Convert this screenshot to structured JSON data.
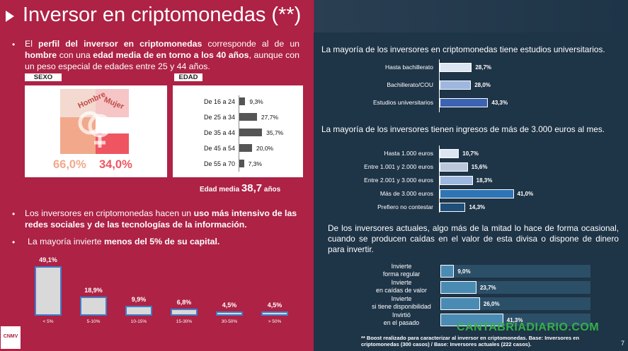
{
  "header": {
    "title": "Inversor en criptomonedas (**)"
  },
  "intro": {
    "t1": "El ",
    "b1": "perfil del inversor en criptomonedas",
    "t2": " corresponde al de un ",
    "b2": "hombre",
    "t3": " con una ",
    "b3": "edad media de en torno a los 40 años",
    "t4": ", aunque con un peso especial de edades entre 25 y 44 años."
  },
  "sexo": {
    "label": "SEXO",
    "hombre_label": "Hombre",
    "mujer_label": "Mujer",
    "hombre_pct": "66,0%",
    "mujer_pct": "34,0%",
    "hombre_value": 66.0,
    "mujer_value": 34.0,
    "hombre_color": "#f2a98b",
    "mujer_color": "#ee5560"
  },
  "edad": {
    "label": "EDAD",
    "rows": [
      {
        "label": "De 16 a 24",
        "value": 9.3,
        "text": "9,3%"
      },
      {
        "label": "De 25 a 34",
        "value": 27.7,
        "text": "27,7%"
      },
      {
        "label": "De 35 a 44",
        "value": 35.7,
        "text": "35,7%"
      },
      {
        "label": "De 45 a 54",
        "value": 20.0,
        "text": "20,0%"
      },
      {
        "label": "De 55 a 70",
        "value": 7.3,
        "text": "7,3%"
      }
    ],
    "media_label": "Edad media ",
    "media_value": "38,7",
    "media_unit": " años"
  },
  "bullets": {
    "b2_t1": "Los inversores en criptomonedas hacen un ",
    "b2_b1": "uso más intensivo de las redes sociales y de las tecnologías de la información.",
    "b3_t1": "La mayoría invierte ",
    "b3_b1": "menos del 5% de su capital."
  },
  "capital_chart": {
    "type": "bar",
    "categories": [
      "< 5%",
      "5-10%",
      "10-15%",
      "15-30%",
      "30-50%",
      "> 50%"
    ],
    "values": [
      49.1,
      18.9,
      9.9,
      6.8,
      4.5,
      4.5
    ],
    "labels": [
      "49,1%",
      "18,9%",
      "9,9%",
      "6,8%",
      "4,5%",
      "4,5%"
    ]
  },
  "estudios": {
    "title": "La mayoría de los inversores en criptomonedas tiene estudios universitarios.",
    "rows": [
      {
        "label": "Hasta bachillerato",
        "value": 28.7,
        "text": "28,7%",
        "color": "#dce6f2"
      },
      {
        "label": "Bachillerato/COU",
        "value": 28.0,
        "text": "28,0%",
        "color": "#9db7e0"
      },
      {
        "label": "Estudios universitarios",
        "value": 43.3,
        "text": "43,3%",
        "color": "#3c63b1"
      }
    ]
  },
  "ingresos": {
    "title": "La mayoría de los inversores tienen ingresos de más de 3.000 euros al mes.",
    "rows": [
      {
        "label": "Hasta 1.000 euros",
        "value": 10.7,
        "text": "10,7%",
        "color": "#dce6f2"
      },
      {
        "label": "Entre 1.001 y 2.000 euros",
        "value": 15.6,
        "text": "15,6%",
        "color": "#b8c7dc"
      },
      {
        "label": "Entre 2.001 y 3.000 euros",
        "value": 18.3,
        "text": "18,3%",
        "color": "#9db7e0"
      },
      {
        "label": "Más de 3.000 euros",
        "value": 41.0,
        "text": "41,0%",
        "color": "#2f75b5"
      },
      {
        "label": "Prefiero no contestar",
        "value": 14.3,
        "text": "14,3%",
        "color": "#1f4e79"
      }
    ]
  },
  "inversion": {
    "title": "De los inversores actuales, algo más de la mitad lo hace de forma ocasional, cuando se producen caídas en el valor de esta divisa o dispone de dinero para invertir.",
    "rows": [
      {
        "l1": "Invierte",
        "l2": "forma regular",
        "value": 9.0,
        "text": "9,0%"
      },
      {
        "l1": "Invierte",
        "l2": "en caídas de valor",
        "value": 23.7,
        "text": "23,7%"
      },
      {
        "l1": "Invierte",
        "l2": "si tiene disponibilidad",
        "value": 26.0,
        "text": "26,0%"
      },
      {
        "l1": "Invirtió",
        "l2": "en el pasado",
        "value": 41.3,
        "text": "41,3%"
      }
    ]
  },
  "footer": {
    "note": "** Boost realizado para caracterizar al inversor en criptomonedas. Base: Inversores en criptomonedas (300 casos) / Base: Inversores actuales (222 casos).",
    "watermark": "CANTABRIADIARIO.COM",
    "page": "7",
    "logo": "CNMV"
  }
}
